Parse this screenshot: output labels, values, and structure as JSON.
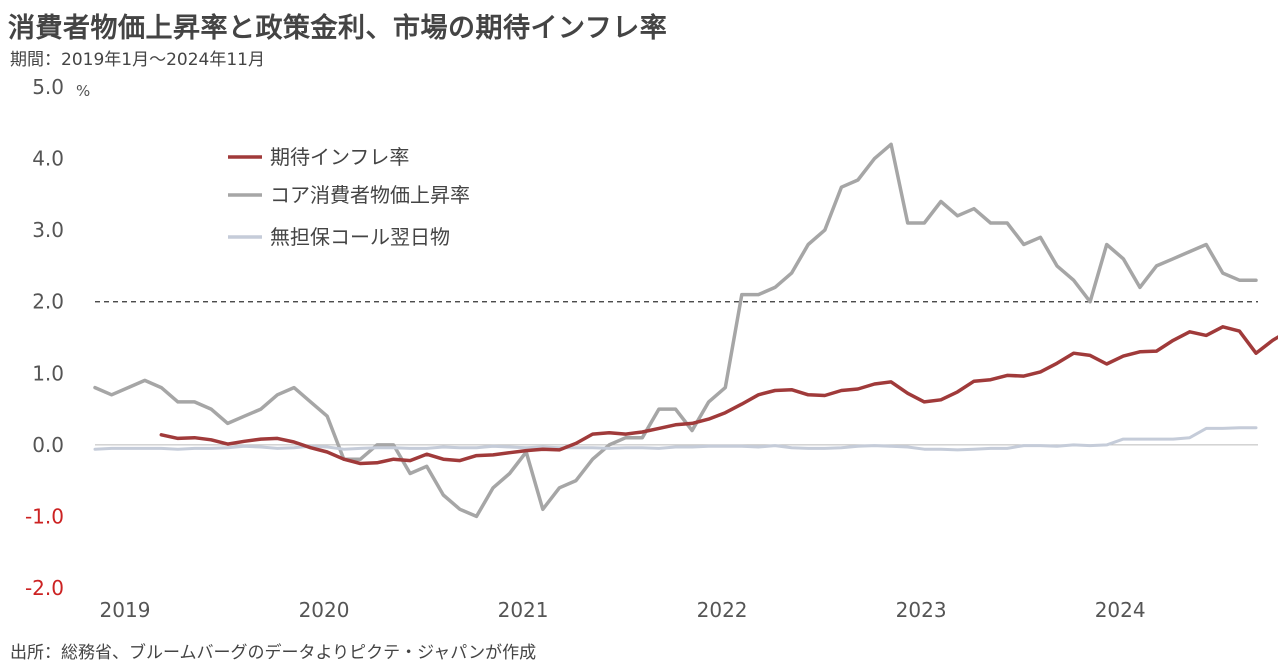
{
  "title": "消費者物価上昇率と政策金利、市場の期待インフレ率",
  "subtitle": "期間：2019年1月～2024年11月",
  "source": "出所：総務省、ブルームバーグのデータよりピクテ・ジャパンが作成",
  "chart_data": {
    "type": "line",
    "y_unit": "%",
    "ylim": [
      -2.0,
      5.0
    ],
    "y_ticks": [
      {
        "value": 5.0,
        "label": "5.0",
        "negative": false
      },
      {
        "value": 4.0,
        "label": "4.0",
        "negative": false
      },
      {
        "value": 3.0,
        "label": "3.0",
        "negative": false
      },
      {
        "value": 2.0,
        "label": "2.0",
        "negative": false
      },
      {
        "value": 1.0,
        "label": "1.0",
        "negative": false
      },
      {
        "value": 0.0,
        "label": "0.0",
        "negative": false
      },
      {
        "value": -1.0,
        "label": "-1.0",
        "negative": true
      },
      {
        "value": -2.0,
        "label": "-2.0",
        "negative": true
      }
    ],
    "x_start": "2019-01",
    "x_end": "2024-11",
    "x_ticks": [
      "2019",
      "2020",
      "2021",
      "2022",
      "2023",
      "2024"
    ],
    "reference_line": {
      "value": 2.0,
      "style": "dashed"
    },
    "legend_position": "top-left",
    "series": [
      {
        "name": "期待インフレ率",
        "color": "#a03a3a",
        "start": "2019-05",
        "values": [
          0.14,
          0.09,
          0.1,
          0.07,
          0.01,
          0.05,
          0.08,
          0.09,
          0.04,
          -0.04,
          -0.1,
          -0.2,
          -0.26,
          -0.25,
          -0.2,
          -0.22,
          -0.13,
          -0.2,
          -0.22,
          -0.15,
          -0.14,
          -0.11,
          -0.08,
          -0.06,
          -0.07,
          0.02,
          0.15,
          0.17,
          0.15,
          0.18,
          0.23,
          0.28,
          0.3,
          0.36,
          0.45,
          0.57,
          0.7,
          0.76,
          0.77,
          0.7,
          0.69,
          0.76,
          0.78,
          0.85,
          0.88,
          0.72,
          0.6,
          0.63,
          0.74,
          0.89,
          0.91,
          0.97,
          0.96,
          1.02,
          1.14,
          1.28,
          1.25,
          1.13,
          1.24,
          1.3,
          1.31,
          1.46,
          1.58,
          1.53,
          1.65,
          1.59,
          1.28,
          1.46,
          1.6
        ]
      },
      {
        "name": "コア消費者物価上昇率",
        "color": "#a6a6a6",
        "start": "2019-01",
        "values": [
          0.8,
          0.7,
          0.8,
          0.9,
          0.8,
          0.6,
          0.6,
          0.5,
          0.3,
          0.4,
          0.5,
          0.7,
          0.8,
          0.6,
          0.4,
          -0.2,
          -0.2,
          0.0,
          0.0,
          -0.4,
          -0.3,
          -0.7,
          -0.9,
          -1.0,
          -0.6,
          -0.4,
          -0.1,
          -0.9,
          -0.6,
          -0.5,
          -0.2,
          0.0,
          0.1,
          0.1,
          0.5,
          0.5,
          0.2,
          0.6,
          0.8,
          2.1,
          2.1,
          2.2,
          2.4,
          2.8,
          3.0,
          3.6,
          3.7,
          4.0,
          4.2,
          3.1,
          3.1,
          3.4,
          3.2,
          3.3,
          3.1,
          3.1,
          2.8,
          2.9,
          2.5,
          2.3,
          2.0,
          2.8,
          2.6,
          2.2,
          2.5,
          2.6,
          2.7,
          2.8,
          2.4,
          2.3,
          2.3
        ]
      },
      {
        "name": "無担保コール翌日物",
        "color": "#c5ccd9",
        "start": "2019-01",
        "values": [
          -0.06,
          -0.05,
          -0.05,
          -0.05,
          -0.05,
          -0.06,
          -0.05,
          -0.05,
          -0.04,
          -0.02,
          -0.03,
          -0.05,
          -0.04,
          -0.02,
          -0.03,
          -0.06,
          -0.05,
          -0.04,
          -0.04,
          -0.05,
          -0.05,
          -0.03,
          -0.04,
          -0.04,
          -0.02,
          -0.03,
          -0.04,
          -0.03,
          -0.04,
          -0.04,
          -0.04,
          -0.05,
          -0.04,
          -0.04,
          -0.05,
          -0.03,
          -0.03,
          -0.02,
          -0.02,
          -0.02,
          -0.03,
          -0.01,
          -0.04,
          -0.05,
          -0.05,
          -0.04,
          -0.02,
          -0.01,
          -0.02,
          -0.03,
          -0.06,
          -0.06,
          -0.07,
          -0.06,
          -0.05,
          -0.05,
          -0.01,
          -0.01,
          -0.02,
          0.0,
          -0.01,
          0.0,
          0.08,
          0.08,
          0.08,
          0.08,
          0.1,
          0.23,
          0.23,
          0.24,
          0.24
        ]
      }
    ]
  }
}
